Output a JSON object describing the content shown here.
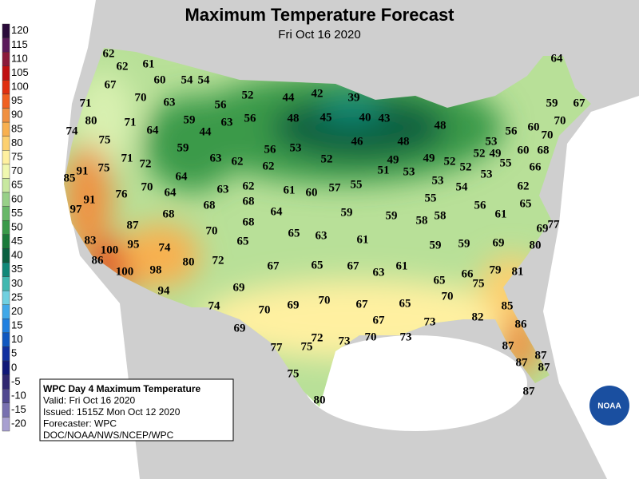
{
  "header": {
    "title": "Maximum Temperature Forecast",
    "subtitle": "Fri Oct 16 2020"
  },
  "legend": {
    "labels": [
      120,
      115,
      110,
      105,
      100,
      95,
      90,
      85,
      80,
      75,
      70,
      65,
      60,
      55,
      50,
      45,
      40,
      35,
      30,
      25,
      20,
      15,
      10,
      5,
      0,
      -5,
      -10,
      -15,
      -20
    ],
    "colors": [
      "#2a0a3a",
      "#5a1a5a",
      "#8b1a3a",
      "#c01010",
      "#e03010",
      "#f06020",
      "#f09040",
      "#f8b050",
      "#fcd070",
      "#fff0a0",
      "#f0f8b0",
      "#c8e8a0",
      "#98d088",
      "#68b868",
      "#3a9a4a",
      "#1a7a3a",
      "#0a6040",
      "#108878",
      "#40b8b0",
      "#70d0e0",
      "#40a8e8",
      "#2080e0",
      "#1058c0",
      "#1030a0",
      "#101878",
      "#302870",
      "#504890",
      "#7870b0",
      "#a8a0d0"
    ]
  },
  "temperatures": [
    62,
    62,
    61,
    67,
    60,
    54,
    54,
    71,
    70,
    63,
    56,
    52,
    44,
    42,
    39,
    64,
    80,
    71,
    64,
    59,
    44,
    63,
    56,
    48,
    45,
    40,
    43,
    48,
    59,
    67,
    74,
    75,
    59,
    56,
    53,
    52,
    46,
    48,
    53,
    56,
    60,
    70,
    70,
    71,
    72,
    63,
    62,
    62,
    51,
    49,
    53,
    49,
    52,
    52,
    49,
    52,
    55,
    60,
    68,
    85,
    91,
    75,
    64,
    70,
    53,
    66,
    76,
    64,
    63,
    62,
    61,
    60,
    57,
    55,
    53,
    54,
    62,
    91,
    68,
    68,
    64,
    59,
    59,
    55,
    58,
    58,
    56,
    61,
    65,
    77,
    97,
    68,
    87,
    70,
    68,
    65,
    63,
    61,
    69,
    83,
    95,
    74,
    65,
    59,
    59,
    69,
    80,
    86,
    100,
    80,
    72,
    67,
    65,
    67,
    63,
    61,
    79,
    81,
    100,
    98,
    66,
    75,
    65,
    94,
    69,
    70,
    74,
    70,
    69,
    70,
    67,
    65,
    85,
    69,
    67,
    73,
    82,
    86,
    77,
    75,
    72,
    73,
    70,
    73,
    87,
    87,
    87,
    87,
    75,
    80,
    87
  ],
  "info_box": {
    "lines": [
      "WPC Day 4 Maximum Temperature",
      "Valid: Fri Oct 16 2020",
      "Issued: 1515Z Mon Oct 12 2020",
      "Forecaster: WPC",
      "DOC/NOAA/NWS/NCEP/WPC"
    ]
  },
  "logo": {
    "text": "NOAA"
  }
}
